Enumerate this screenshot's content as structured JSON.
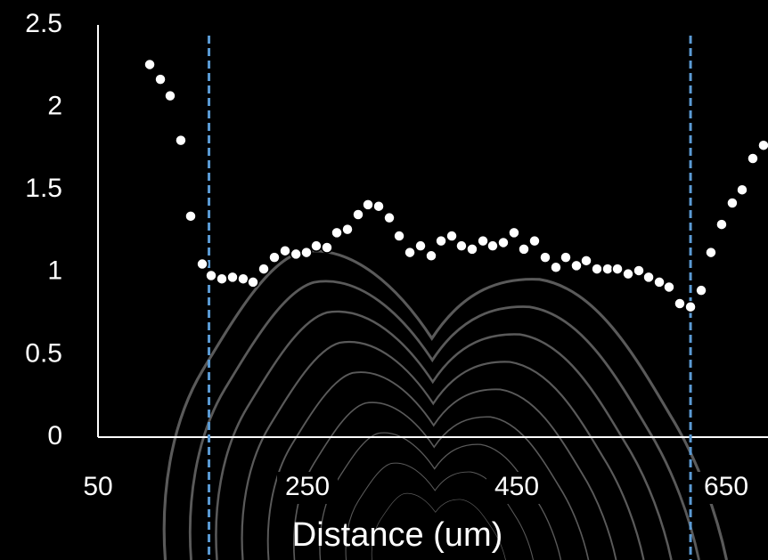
{
  "chart_data": {
    "type": "scatter",
    "x_label": "Distance (um)",
    "x": [
      99.4,
      109.6,
      118.9,
      129.1,
      138.5,
      149.6,
      158.1,
      168.3,
      178.5,
      188.7,
      198.1,
      208.3,
      218.5,
      228.7,
      239.1,
      249.1,
      258.5,
      268.7,
      278.1,
      288.3,
      298.5,
      307.9,
      318.1,
      328.3,
      337.7,
      347.9,
      358.1,
      368.3,
      377.7,
      387.9,
      397.2,
      407.4,
      417.7,
      427.0,
      437.2,
      447.4,
      456.8,
      467.0,
      477.2,
      487.4,
      496.8,
      507.0,
      516.4,
      526.6,
      536.8,
      546.2,
      556.4,
      566.6,
      576.0,
      586.2,
      595.5,
      605.7,
      616.0,
      626.2,
      635.5,
      645.7,
      655.9,
      665.3,
      675.5,
      685.7
    ],
    "values": [
      2.26,
      2.17,
      2.07,
      1.8,
      1.34,
      1.05,
      0.98,
      0.96,
      0.97,
      0.96,
      0.94,
      1.02,
      1.09,
      1.13,
      1.11,
      1.12,
      1.16,
      1.15,
      1.24,
      1.26,
      1.35,
      1.41,
      1.4,
      1.33,
      1.22,
      1.12,
      1.16,
      1.1,
      1.19,
      1.22,
      1.16,
      1.14,
      1.19,
      1.16,
      1.18,
      1.24,
      1.14,
      1.19,
      1.09,
      1.03,
      1.09,
      1.04,
      1.07,
      1.02,
      1.02,
      1.02,
      0.99,
      1.01,
      0.97,
      0.94,
      0.91,
      0.81,
      0.79,
      0.89,
      1.12,
      1.29,
      1.42,
      1.5,
      1.69,
      1.77
    ],
    "color": "#ffffff",
    "xlim": [
      50,
      690
    ],
    "xticks": [
      50,
      250,
      450,
      650
    ],
    "ylim": [
      0,
      2.5
    ],
    "yticks": [
      0,
      0.5,
      1,
      1.5,
      2,
      2.5
    ],
    "reference_lines": [
      156,
      616
    ],
    "reference_color": "#5b9bd5"
  }
}
